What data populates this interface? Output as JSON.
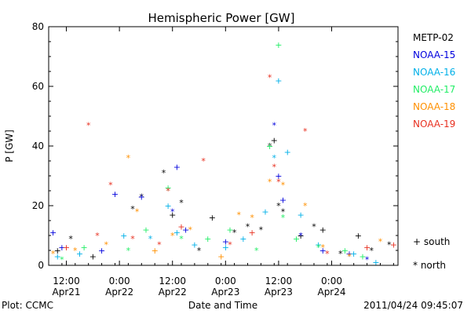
{
  "chart_data": {
    "type": "scatter",
    "title": "Hemispheric Power [GW]",
    "xlabel": "Date and Time",
    "ylabel": "P [GW]",
    "ylim": [
      0,
      80
    ],
    "yticks": [
      0,
      20,
      40,
      60,
      80
    ],
    "xlim": [
      "2011-04-21 08:00",
      "2011-04-24 15:00"
    ],
    "xticks": [
      {
        "at": "2011-04-21 12:00",
        "line1": "12:00",
        "line2": "Apr21"
      },
      {
        "at": "2011-04-22 00:00",
        "line1": "0:00",
        "line2": "Apr22"
      },
      {
        "at": "2011-04-22 12:00",
        "line1": "12:00",
        "line2": "Apr22"
      },
      {
        "at": "2011-04-23 00:00",
        "line1": "0:00",
        "line2": "Apr23"
      },
      {
        "at": "2011-04-23 12:00",
        "line1": "12:00",
        "line2": "Apr23"
      },
      {
        "at": "2011-04-24 00:00",
        "line1": "0:00",
        "line2": "Apr24"
      }
    ],
    "grid": false,
    "legend_position": "right",
    "symbol_legend": [
      {
        "symbol": "+",
        "label": "south"
      },
      {
        "symbol": "*",
        "label": "north"
      }
    ],
    "series": [
      {
        "name": "METP-02",
        "color": "#000000",
        "points": [
          [
            "2011-04-21 10:00",
            5,
            "+"
          ],
          [
            "2011-04-21 13:00",
            9,
            "*"
          ],
          [
            "2011-04-21 18:00",
            3,
            "+"
          ],
          [
            "2011-04-22 03:00",
            19,
            "*"
          ],
          [
            "2011-04-22 05:00",
            23,
            "*"
          ],
          [
            "2011-04-22 10:00",
            31,
            "*"
          ],
          [
            "2011-04-22 12:00",
            17,
            "+"
          ],
          [
            "2011-04-22 14:00",
            21,
            "*"
          ],
          [
            "2011-04-22 18:00",
            5,
            "*"
          ],
          [
            "2011-04-22 21:00",
            16,
            "+"
          ],
          [
            "2011-04-23 02:00",
            11,
            "*"
          ],
          [
            "2011-04-23 05:00",
            13,
            "*"
          ],
          [
            "2011-04-23 08:00",
            12,
            "*"
          ],
          [
            "2011-04-23 10:00",
            40,
            "*"
          ],
          [
            "2011-04-23 11:00",
            42,
            "+"
          ],
          [
            "2011-04-23 12:00",
            20,
            "*"
          ],
          [
            "2011-04-23 13:00",
            18,
            "*"
          ],
          [
            "2011-04-23 17:00",
            10,
            "+"
          ],
          [
            "2011-04-23 20:00",
            13,
            "*"
          ],
          [
            "2011-04-23 22:00",
            12,
            "+"
          ],
          [
            "2011-04-24 02:00",
            4,
            "*"
          ],
          [
            "2011-04-24 06:00",
            10,
            "+"
          ],
          [
            "2011-04-24 09:00",
            5,
            "*"
          ],
          [
            "2011-04-24 13:00",
            7,
            "*"
          ]
        ]
      },
      {
        "name": "NOAA-15",
        "color": "#0000dd",
        "points": [
          [
            "2011-04-21 09:00",
            11,
            "+"
          ],
          [
            "2011-04-21 11:00",
            6,
            "+"
          ],
          [
            "2011-04-21 20:00",
            5,
            "+"
          ],
          [
            "2011-04-21 23:00",
            24,
            "+"
          ],
          [
            "2011-04-22 05:00",
            23,
            "+"
          ],
          [
            "2011-04-22 12:00",
            18,
            "*"
          ],
          [
            "2011-04-22 13:00",
            33,
            "+"
          ],
          [
            "2011-04-22 15:00",
            12,
            "+"
          ],
          [
            "2011-04-23 00:00",
            8,
            "+"
          ],
          [
            "2011-04-23 11:00",
            47,
            "*"
          ],
          [
            "2011-04-23 12:00",
            30,
            "+"
          ],
          [
            "2011-04-23 13:00",
            22,
            "+"
          ],
          [
            "2011-04-23 17:00",
            10,
            "*"
          ],
          [
            "2011-04-23 22:00",
            5,
            "+"
          ],
          [
            "2011-04-24 04:00",
            4,
            "+"
          ],
          [
            "2011-04-24 08:00",
            2,
            "*"
          ]
        ]
      },
      {
        "name": "NOAA-16",
        "color": "#00b0e8",
        "points": [
          [
            "2011-04-21 10:00",
            3,
            "+"
          ],
          [
            "2011-04-21 15:00",
            4,
            "+"
          ],
          [
            "2011-04-22 01:00",
            10,
            "+"
          ],
          [
            "2011-04-22 07:00",
            9,
            "*"
          ],
          [
            "2011-04-22 11:00",
            20,
            "+"
          ],
          [
            "2011-04-22 13:00",
            11,
            "+"
          ],
          [
            "2011-04-22 17:00",
            7,
            "+"
          ],
          [
            "2011-04-23 00:00",
            6,
            "+"
          ],
          [
            "2011-04-23 04:00",
            9,
            "+"
          ],
          [
            "2011-04-23 09:00",
            18,
            "+"
          ],
          [
            "2011-04-23 11:00",
            36,
            "*"
          ],
          [
            "2011-04-23 12:00",
            62,
            "+"
          ],
          [
            "2011-04-23 14:00",
            38,
            "+"
          ],
          [
            "2011-04-23 17:00",
            17,
            "+"
          ],
          [
            "2011-04-23 21:00",
            7,
            "+"
          ],
          [
            "2011-04-24 05:00",
            4,
            "+"
          ],
          [
            "2011-04-24 10:00",
            1,
            "+"
          ]
        ]
      },
      {
        "name": "NOAA-17",
        "color": "#22ee66",
        "points": [
          [
            "2011-04-21 11:00",
            2,
            "*"
          ],
          [
            "2011-04-21 16:00",
            6,
            "+"
          ],
          [
            "2011-04-22 02:00",
            5,
            "*"
          ],
          [
            "2011-04-22 06:00",
            12,
            "+"
          ],
          [
            "2011-04-22 11:00",
            26,
            "+"
          ],
          [
            "2011-04-22 14:00",
            9,
            "*"
          ],
          [
            "2011-04-22 20:00",
            9,
            "+"
          ],
          [
            "2011-04-23 01:00",
            12,
            "+"
          ],
          [
            "2011-04-23 07:00",
            5,
            "*"
          ],
          [
            "2011-04-23 10:00",
            40,
            "+"
          ],
          [
            "2011-04-23 12:00",
            74,
            "+"
          ],
          [
            "2011-04-23 13:00",
            16,
            "*"
          ],
          [
            "2011-04-23 16:00",
            9,
            "+"
          ],
          [
            "2011-04-23 21:00",
            6,
            "*"
          ],
          [
            "2011-04-24 03:00",
            5,
            "+"
          ],
          [
            "2011-04-24 07:00",
            3,
            "+"
          ]
        ]
      },
      {
        "name": "NOAA-18",
        "color": "#ff9000",
        "points": [
          [
            "2011-04-21 09:00",
            4,
            "*"
          ],
          [
            "2011-04-21 14:00",
            5,
            "*"
          ],
          [
            "2011-04-21 21:00",
            7,
            "*"
          ],
          [
            "2011-04-22 02:00",
            36,
            "*"
          ],
          [
            "2011-04-22 04:00",
            18,
            "*"
          ],
          [
            "2011-04-22 08:00",
            5,
            "+"
          ],
          [
            "2011-04-22 12:00",
            10,
            "*"
          ],
          [
            "2011-04-22 16:00",
            12,
            "*"
          ],
          [
            "2011-04-22 23:00",
            3,
            "+"
          ],
          [
            "2011-04-23 03:00",
            17,
            "*"
          ],
          [
            "2011-04-23 06:00",
            16,
            "*"
          ],
          [
            "2011-04-23 10:00",
            28,
            "*"
          ],
          [
            "2011-04-23 13:00",
            27,
            "*"
          ],
          [
            "2011-04-23 18:00",
            20,
            "*"
          ],
          [
            "2011-04-23 22:00",
            6,
            "*"
          ],
          [
            "2011-04-24 04:00",
            3,
            "*"
          ],
          [
            "2011-04-24 11:00",
            8,
            "*"
          ]
        ]
      },
      {
        "name": "NOAA-19",
        "color": "#e83020",
        "points": [
          [
            "2011-04-21 12:00",
            6,
            "+"
          ],
          [
            "2011-04-21 17:00",
            47,
            "*"
          ],
          [
            "2011-04-21 19:00",
            10,
            "*"
          ],
          [
            "2011-04-21 22:00",
            27,
            "*"
          ],
          [
            "2011-04-22 03:00",
            9,
            "*"
          ],
          [
            "2011-04-22 09:00",
            7,
            "*"
          ],
          [
            "2011-04-22 11:00",
            25,
            "*"
          ],
          [
            "2011-04-22 14:00",
            13,
            "+"
          ],
          [
            "2011-04-22 19:00",
            35,
            "*"
          ],
          [
            "2011-04-23 01:00",
            7,
            "*"
          ],
          [
            "2011-04-23 06:00",
            11,
            "+"
          ],
          [
            "2011-04-23 10:00",
            63,
            "*"
          ],
          [
            "2011-04-23 11:00",
            33,
            "*"
          ],
          [
            "2011-04-23 12:00",
            28,
            "*"
          ],
          [
            "2011-04-23 18:00",
            45,
            "*"
          ],
          [
            "2011-04-23 23:00",
            4,
            "*"
          ],
          [
            "2011-04-24 08:00",
            6,
            "+"
          ],
          [
            "2011-04-24 14:00",
            7,
            "+"
          ]
        ]
      }
    ]
  },
  "footer": {
    "credit": "Plot: CCMC",
    "timestamp": "2011/04/24 09:45:07"
  }
}
